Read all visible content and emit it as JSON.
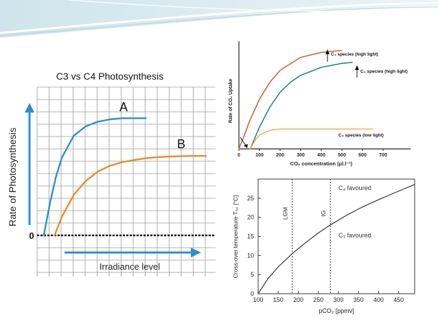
{
  "chart_data": [
    {
      "type": "line",
      "title": "C3 vs C4 Photosynthesis",
      "xlabel": "Irradiance level",
      "ylabel": "Rate of Photosynthesis",
      "origin_label": "0",
      "grid": true,
      "series": [
        {
          "name": "A",
          "color": "#2a8fd0",
          "x": [
            0.5,
            1,
            1.5,
            2,
            3,
            4,
            5,
            6,
            7,
            8,
            9
          ],
          "y": [
            0,
            2.7,
            5.0,
            6.7,
            8.6,
            9.4,
            9.8,
            10.0,
            10.1,
            10.1,
            10.1
          ]
        },
        {
          "name": "B",
          "color": "#e88a2a",
          "x": [
            1.4,
            2,
            3,
            4,
            5,
            6,
            7,
            8,
            9,
            10,
            11,
            12,
            13,
            14
          ],
          "y": [
            0,
            1.6,
            3.5,
            4.7,
            5.5,
            6.0,
            6.3,
            6.5,
            6.65,
            6.75,
            6.8,
            6.83,
            6.85,
            6.85
          ]
        }
      ]
    },
    {
      "type": "line",
      "xlabel": "CO₂ concentration (μl.l⁻¹)",
      "ylabel": "Rate of CO₂ Uptake",
      "xticks": [
        "0",
        "100",
        "200",
        "300",
        "400",
        "500",
        "600",
        "700"
      ],
      "xlim": [
        0,
        700
      ],
      "series": [
        {
          "name": "C₄ species (high light)",
          "color": "#c8683a",
          "x": [
            0,
            25,
            50,
            100,
            150,
            200,
            300,
            400,
            500
          ],
          "y": [
            0,
            13,
            27,
            50,
            67,
            79,
            92,
            97,
            99
          ]
        },
        {
          "name": "C₃ species (high light)",
          "color": "#1f8a7e",
          "x": [
            55,
            100,
            150,
            200,
            250,
            300,
            400,
            500,
            550
          ],
          "y": [
            0,
            22,
            42,
            57,
            67,
            74,
            82,
            86,
            87
          ]
        },
        {
          "name": "C₃ species (low light)",
          "color": "#f0b060",
          "x": [
            55,
            80,
            100,
            130,
            160,
            200,
            300,
            400,
            500,
            600,
            650
          ],
          "y": [
            0,
            9,
            14,
            17,
            19,
            20,
            20,
            20,
            20,
            20,
            20
          ]
        }
      ]
    },
    {
      "type": "line",
      "xlabel": "pCO₂ [ppmv]",
      "ylabel": "Cross-over temperature T₅₀ [°C]",
      "xticks": [
        "100",
        "150",
        "200",
        "250",
        "300",
        "350",
        "400",
        "450"
      ],
      "yticks": [
        "0",
        "5",
        "10",
        "15",
        "20",
        "25"
      ],
      "xlim": [
        100,
        490
      ],
      "ylim": [
        0,
        30
      ],
      "annotations": [
        "LGM",
        "IG",
        "C₄ favoured",
        "C₃ favoured"
      ],
      "vlines": [
        {
          "label": "LGM",
          "x": 185
        },
        {
          "label": "IG",
          "x": 280
        }
      ],
      "series": [
        {
          "color": "#333333",
          "x": [
            100,
            125,
            150,
            185,
            220,
            250,
            280,
            320,
            360,
            400,
            440,
            490
          ],
          "y": [
            0,
            4.0,
            7.0,
            10.5,
            13.5,
            15.9,
            18.0,
            20.5,
            22.7,
            24.6,
            26.4,
            28.6
          ]
        }
      ]
    }
  ]
}
